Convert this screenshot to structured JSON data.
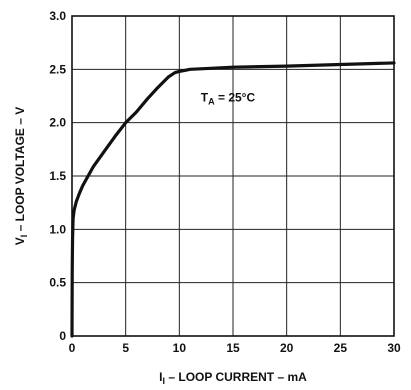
{
  "chart_data": {
    "type": "line",
    "title": "",
    "xlabel": {
      "main": "I",
      "subscript": "I",
      "rest": " – LOOP CURRENT – mA"
    },
    "ylabel": {
      "main": "V",
      "subscript": "I",
      "rest": " – LOOP VOLTAGE – V"
    },
    "xlim": [
      0,
      30
    ],
    "ylim": [
      0,
      3.0
    ],
    "x_ticks": [
      0,
      5,
      10,
      15,
      20,
      25,
      30
    ],
    "x_tick_labels": [
      "0",
      "5",
      "10",
      "15",
      "20",
      "25",
      "30"
    ],
    "y_ticks": [
      0,
      0.5,
      1.0,
      1.5,
      2.0,
      2.5,
      3.0
    ],
    "y_tick_labels": [
      "0",
      "0.5",
      "1.0",
      "1.5",
      "2.0",
      "2.5",
      "3.0"
    ],
    "grid": true,
    "annotation": {
      "main": "T",
      "subscript": "A",
      "rest": " = 25°C",
      "x": 12,
      "y": 2.2
    },
    "series": [
      {
        "x": [
          0,
          0.02,
          0.05,
          0.1,
          0.2,
          0.4,
          0.7,
          1.0,
          1.5,
          2.0,
          3.0,
          4.0,
          5.0,
          6.0,
          7.0,
          8.0,
          9.0,
          9.6,
          10.0,
          10.5,
          11.0,
          12.0,
          15.0,
          20.0,
          25.0,
          30.0
        ],
        "y": [
          0,
          0.6,
          0.9,
          1.1,
          1.18,
          1.26,
          1.34,
          1.41,
          1.5,
          1.59,
          1.73,
          1.87,
          2.0,
          2.1,
          2.22,
          2.33,
          2.43,
          2.47,
          2.48,
          2.49,
          2.5,
          2.505,
          2.52,
          2.53,
          2.545,
          2.56
        ]
      }
    ]
  }
}
